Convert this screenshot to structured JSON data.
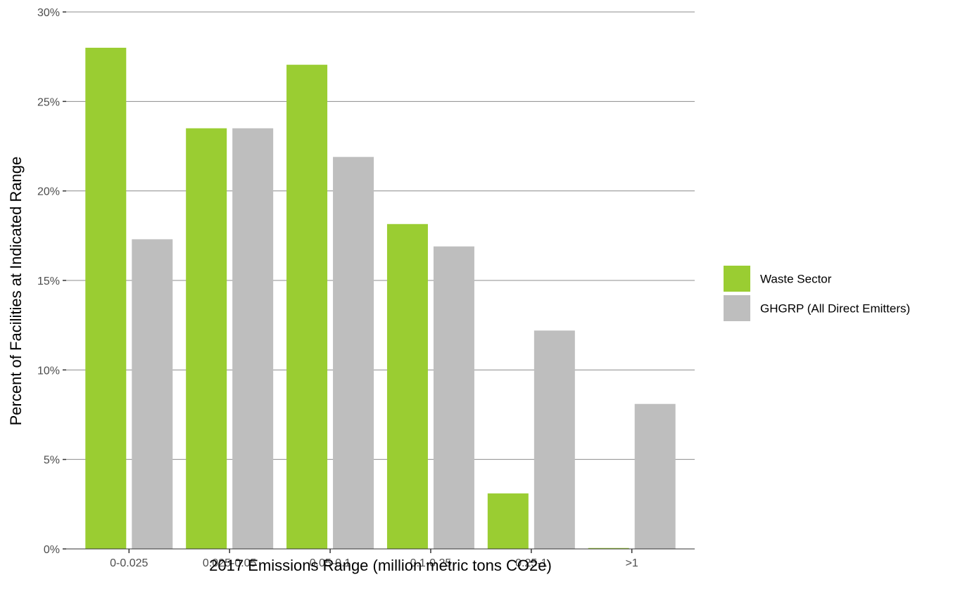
{
  "chart_data": {
    "type": "bar",
    "title": "",
    "xlabel": "2017 Emissions Range (million metric tons CO2e)",
    "ylabel": "Percent of Facilities at Indicated Range",
    "categories": [
      "0-0.025",
      "0.025-0.05",
      "0.05-0.1",
      "0.1-0.25",
      "0.25-1",
      ">1"
    ],
    "series": [
      {
        "name": "Waste Sector",
        "color": "#9acd32",
        "values": [
          28.0,
          23.5,
          27.05,
          18.15,
          3.1,
          0.05
        ]
      },
      {
        "name": "GHGRP (All Direct Emitters)",
        "color": "#bebebe",
        "values": [
          17.3,
          23.5,
          21.9,
          16.9,
          12.2,
          8.1
        ]
      }
    ],
    "ylim": [
      0,
      30
    ],
    "yticks": [
      0,
      5,
      10,
      15,
      20,
      25,
      30
    ],
    "ytick_labels": [
      "0%",
      "5%",
      "10%",
      "15%",
      "20%",
      "25%",
      "30%"
    ],
    "grid": "horizontal",
    "legend_position": "right"
  }
}
